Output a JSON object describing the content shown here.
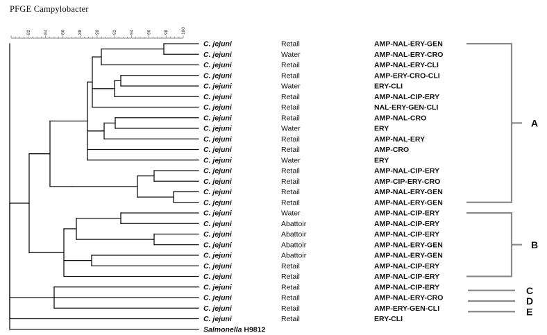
{
  "title": "PFGE Campylobacter",
  "scale_ticks": [
    "82",
    "84",
    "86",
    "88",
    "90",
    "92",
    "94",
    "96",
    "98",
    "100"
  ],
  "rows": [
    {
      "species": "C. jejuni",
      "suffix": "",
      "source": "Retail",
      "profile": "AMP-NAL-ERY-GEN"
    },
    {
      "species": "C. jejuni",
      "suffix": "",
      "source": "Water",
      "profile": "AMP-NAL-ERY-CRO"
    },
    {
      "species": "C. jejuni",
      "suffix": "",
      "source": "Retail",
      "profile": "AMP-NAL-ERY-CLI"
    },
    {
      "species": "C. jejuni",
      "suffix": "",
      "source": "Retail",
      "profile": "AMP-ERY-CRO-CLI"
    },
    {
      "species": "C. jejuni",
      "suffix": "",
      "source": "Water",
      "profile": "ERY-CLI"
    },
    {
      "species": "C. jejuni",
      "suffix": "",
      "source": "Retail",
      "profile": "AMP-NAL-CIP-ERY"
    },
    {
      "species": "C. jejuni",
      "suffix": "",
      "source": "Retail",
      "profile": "NAL-ERY-GEN-CLI"
    },
    {
      "species": "C. jejuni",
      "suffix": "",
      "source": "Retail",
      "profile": "AMP-NAL-CRO"
    },
    {
      "species": "C. jejuni",
      "suffix": "",
      "source": "Water",
      "profile": "ERY"
    },
    {
      "species": "C. jejuni",
      "suffix": "",
      "source": "Retail",
      "profile": "AMP-NAL-ERY"
    },
    {
      "species": "C. jejuni",
      "suffix": "",
      "source": "Retail",
      "profile": "AMP-CRO"
    },
    {
      "species": "C. jejuni",
      "suffix": "",
      "source": "Water",
      "profile": "ERY"
    },
    {
      "species": "C. jejuni",
      "suffix": "",
      "source": "Retail",
      "profile": "AMP-NAL-CIP-ERY"
    },
    {
      "species": "C. jejuni",
      "suffix": "",
      "source": "Retail",
      "profile": "AMP-CIP-ERY-CRO"
    },
    {
      "species": "C. jejuni",
      "suffix": "",
      "source": "Retail",
      "profile": "AMP-NAL-ERY-GEN"
    },
    {
      "species": "C. jejuni",
      "suffix": "",
      "source": "Retail",
      "profile": "AMP-NAL-ERY-GEN"
    },
    {
      "species": "C. jejuni",
      "suffix": "",
      "source": "Water",
      "profile": "AMP-NAL-CIP-ERY"
    },
    {
      "species": "C. jejuni",
      "suffix": "",
      "source": "Abattoir",
      "profile": "AMP-NAL-CIP-ERY"
    },
    {
      "species": "C. jejuni",
      "suffix": "",
      "source": "Abattoir",
      "profile": "AMP-NAL-CIP-ERY"
    },
    {
      "species": "C. jejuni",
      "suffix": "",
      "source": "Abattoir",
      "profile": "AMP-NAL-ERY-GEN"
    },
    {
      "species": "C. jejuni",
      "suffix": "",
      "source": "Abattoir",
      "profile": "AMP-NAL-ERY-GEN"
    },
    {
      "species": "C. jejuni",
      "suffix": "",
      "source": "Retail",
      "profile": "AMP-NAL-CIP-ERY"
    },
    {
      "species": "C. jejuni",
      "suffix": "",
      "source": "Retail",
      "profile": "AMP-NAL-CIP-ERY"
    },
    {
      "species": "C. jejuni",
      "suffix": "",
      "source": "Retail",
      "profile": "AMP-NAL-CIP-ERY"
    },
    {
      "species": "C. jejuni",
      "suffix": "",
      "source": "Retail",
      "profile": "AMP-NAL-ERY-CRO"
    },
    {
      "species": "C. jejuni",
      "suffix": "",
      "source": "Retail",
      "profile": "AMP-ERY-GEN-CLI"
    },
    {
      "species": "C. jejuni",
      "suffix": "",
      "source": "Retail",
      "profile": "ERY-CLI"
    },
    {
      "species": "Salmonella",
      "suffix": " H9812",
      "source": "",
      "profile": ""
    }
  ],
  "clusters": [
    {
      "label": "A",
      "first_row": 0,
      "last_row": 15
    },
    {
      "label": "B",
      "first_row": 16,
      "last_row": 22
    },
    {
      "label": "C",
      "first_row": 23,
      "last_row": 23
    },
    {
      "label": "D",
      "first_row": 24,
      "last_row": 24
    },
    {
      "label": "E",
      "first_row": 25,
      "last_row": 25
    }
  ],
  "colors": {
    "tree": "#111111",
    "bracket": "#8a8a8a",
    "text": "#111111"
  }
}
